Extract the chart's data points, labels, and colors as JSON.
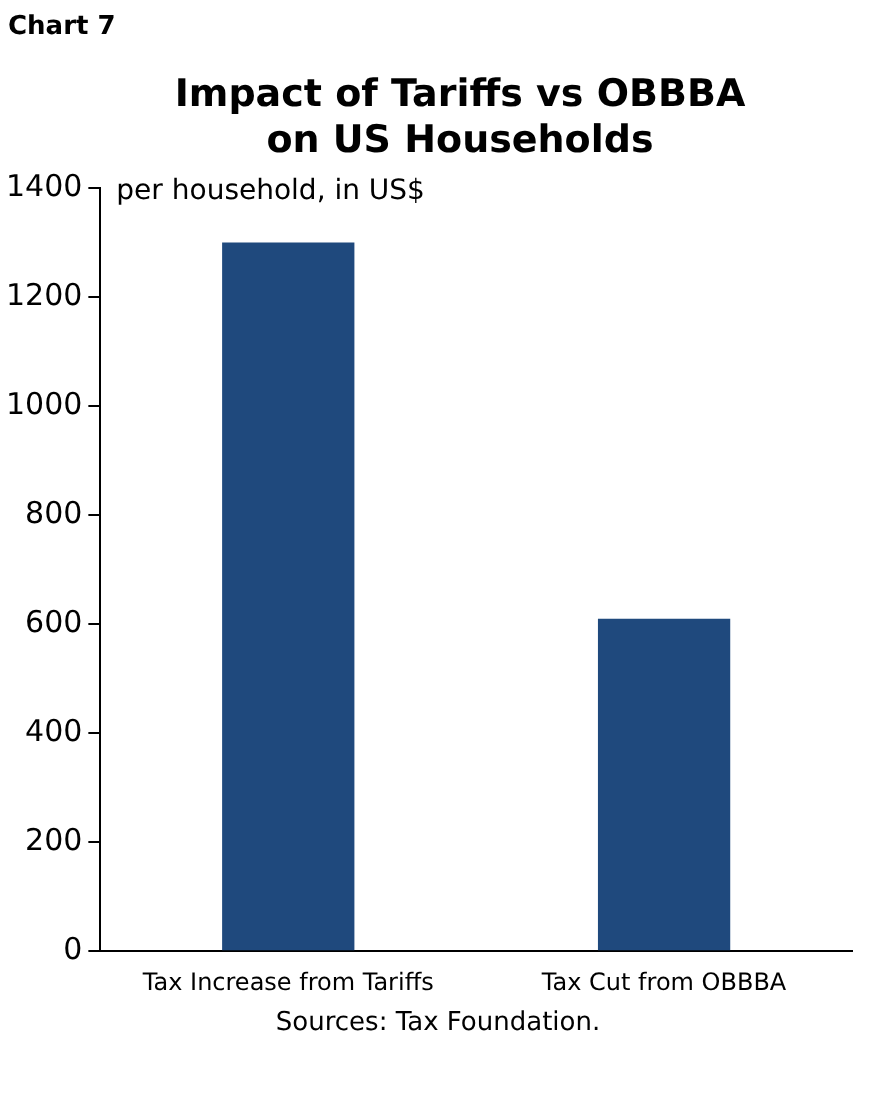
{
  "chart_data": {
    "type": "bar",
    "title": "Impact of Tariffs vs OBBBA on US Households",
    "ylabel": "per household, in US$",
    "categories": [
      "Tax Increase from Tariffs",
      "Tax Cut from OBBBA"
    ],
    "values": [
      1300,
      610
    ],
    "color": "#1f497d",
    "ylim": [
      0,
      1400
    ],
    "yticks": [
      0,
      200,
      400,
      600,
      800,
      1000,
      1200,
      1400
    ],
    "grid": false,
    "legend": false,
    "annotations": [
      "Chart 7",
      "Sources: Tax Foundation."
    ]
  }
}
